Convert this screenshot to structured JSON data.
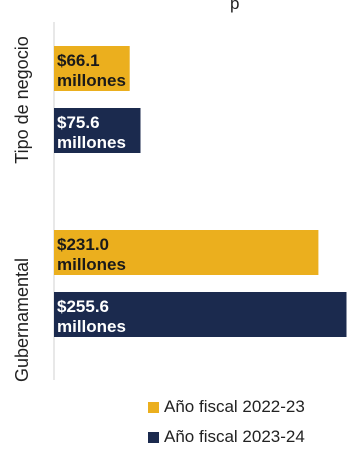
{
  "title_fragment": "p",
  "chart_data": {
    "type": "bar",
    "orientation": "horizontal",
    "categories": [
      "Tipo de negocio",
      "Gubernamental"
    ],
    "series": [
      {
        "name": "Año fiscal 2022-23",
        "values": [
          66.1,
          231.0
        ],
        "labels": [
          "$66.1 millones",
          "$231.0 millones"
        ],
        "color": "#EBAF1E"
      },
      {
        "name": "Año fiscal 2023-24",
        "values": [
          75.6,
          255.6
        ],
        "labels": [
          "$75.6 millones",
          "$255.6 millones"
        ],
        "color": "#1B2A4E"
      }
    ],
    "xlim": [
      0,
      256
    ],
    "grid": false,
    "legend_position": "bottom-right"
  }
}
